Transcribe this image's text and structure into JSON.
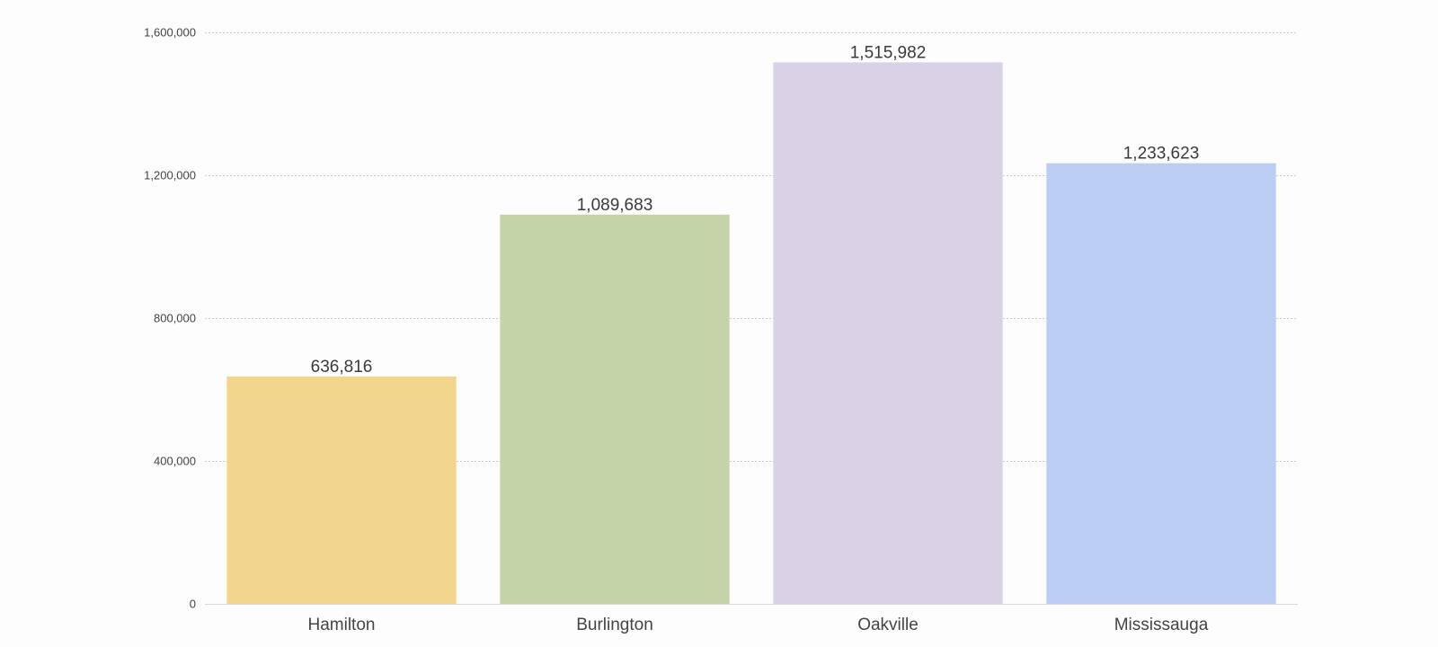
{
  "chart_data": {
    "type": "bar",
    "title": "",
    "xlabel": "",
    "ylabel": "",
    "categories": [
      "Hamilton",
      "Burlington",
      "Oakville",
      "Mississauga"
    ],
    "values": [
      636816,
      1089683,
      1515982,
      1233623
    ],
    "value_labels": [
      "636,816",
      "1,089,683",
      "1,515,982",
      "1,233,623"
    ],
    "colors": [
      "#f2d68d",
      "#c4d4a8",
      "#d9d2e6",
      "#bccdf3"
    ],
    "ylim": [
      0,
      1600000
    ],
    "yticks": [
      0,
      400000,
      800000,
      1200000,
      1600000
    ],
    "ytick_labels": [
      "0",
      "400,000",
      "800,000",
      "1,200,000",
      "1,600,000"
    ],
    "grid": true,
    "legend": "none"
  }
}
